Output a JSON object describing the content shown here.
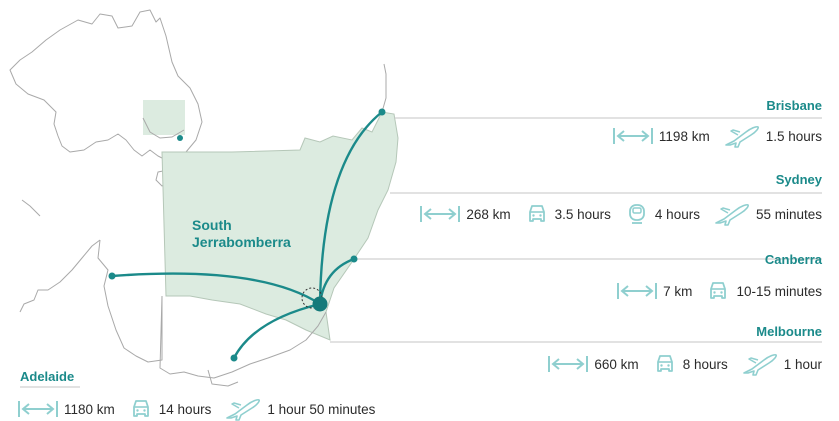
{
  "map": {
    "origin": "South Jerrabomberra",
    "origin_line1": "South",
    "origin_line2": "Jerrabomberra",
    "colors": {
      "accent": "#1b8a8a",
      "region": "#dcebe0",
      "outline": "#a9a9a9",
      "text": "#2b2b2b"
    }
  },
  "destinations": {
    "brisbane": {
      "name": "Brisbane",
      "distance": "1198 km",
      "flight": "1.5 hours"
    },
    "sydney": {
      "name": "Sydney",
      "distance": "268 km",
      "drive": "3.5 hours",
      "train": "4 hours",
      "flight": "55 minutes"
    },
    "canberra": {
      "name": "Canberra",
      "distance": "7 km",
      "drive": "10-15 minutes"
    },
    "melbourne": {
      "name": "Melbourne",
      "distance": "660 km",
      "drive": "8 hours",
      "flight": "1 hour"
    },
    "adelaide": {
      "name": "Adelaide",
      "distance": "1180 km",
      "drive": "14 hours",
      "flight": "1 hour 50 minutes"
    }
  },
  "icons": {
    "distance": "double-arrow-icon",
    "drive": "car-icon",
    "train": "train-icon",
    "flight": "plane-icon"
  }
}
